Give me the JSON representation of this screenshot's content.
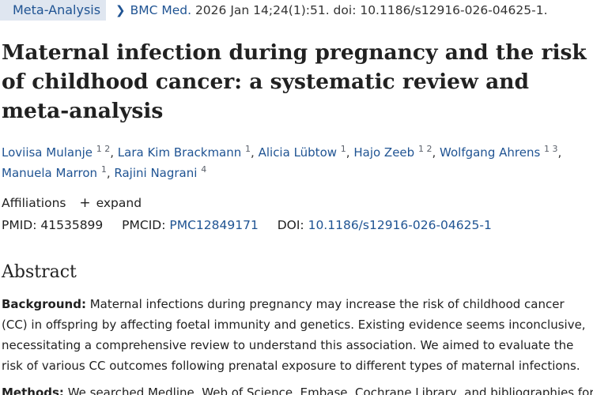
{
  "header": {
    "badge": "Meta-Analysis",
    "chevron_icon": "chevron-right-icon",
    "journal": "BMC Med.",
    "citation_rest": " 2026 Jan 14;24(1):51. doi: 10.1186/s12916-026-04625-1."
  },
  "article": {
    "title": "Maternal infection during pregnancy and the risk of childhood cancer: a systematic review and meta-analysis"
  },
  "authors": [
    {
      "name": "Loviisa Mulanje",
      "sup": "1 2"
    },
    {
      "name": "Lara Kim Brackmann",
      "sup": "1"
    },
    {
      "name": "Alicia Lübtow",
      "sup": "1"
    },
    {
      "name": "Hajo Zeeb",
      "sup": "1 2"
    },
    {
      "name": "Wolfgang Ahrens",
      "sup": "1 3"
    },
    {
      "name": "Manuela Marron",
      "sup": "1"
    },
    {
      "name": "Rajini Nagrani",
      "sup": "4"
    }
  ],
  "affiliations": {
    "label": "Affiliations",
    "icon": "plus-icon",
    "expand_label": "expand"
  },
  "identifiers": {
    "pmid_label": "PMID:",
    "pmid": "41535899",
    "pmcid_label": "PMCID:",
    "pmcid": "PMC12849171",
    "doi_label": "DOI:",
    "doi": "10.1186/s12916-026-04625-1"
  },
  "abstract": {
    "heading": "Abstract",
    "background_label": "Background:",
    "background_text": " Maternal infections during pregnancy may increase the risk of childhood cancer (CC) in offspring by affecting foetal immunity and genetics. Existing evidence seems inconclusive, necessitating a comprehensive review to understand this association. We aimed to evaluate the risk of various CC outcomes following prenatal exposure to different types of maternal infections.",
    "methods_label": "Methods:",
    "methods_text": " We searched Medline, Web of Science, Embase, Cochrane Library, and bibliographies for"
  }
}
